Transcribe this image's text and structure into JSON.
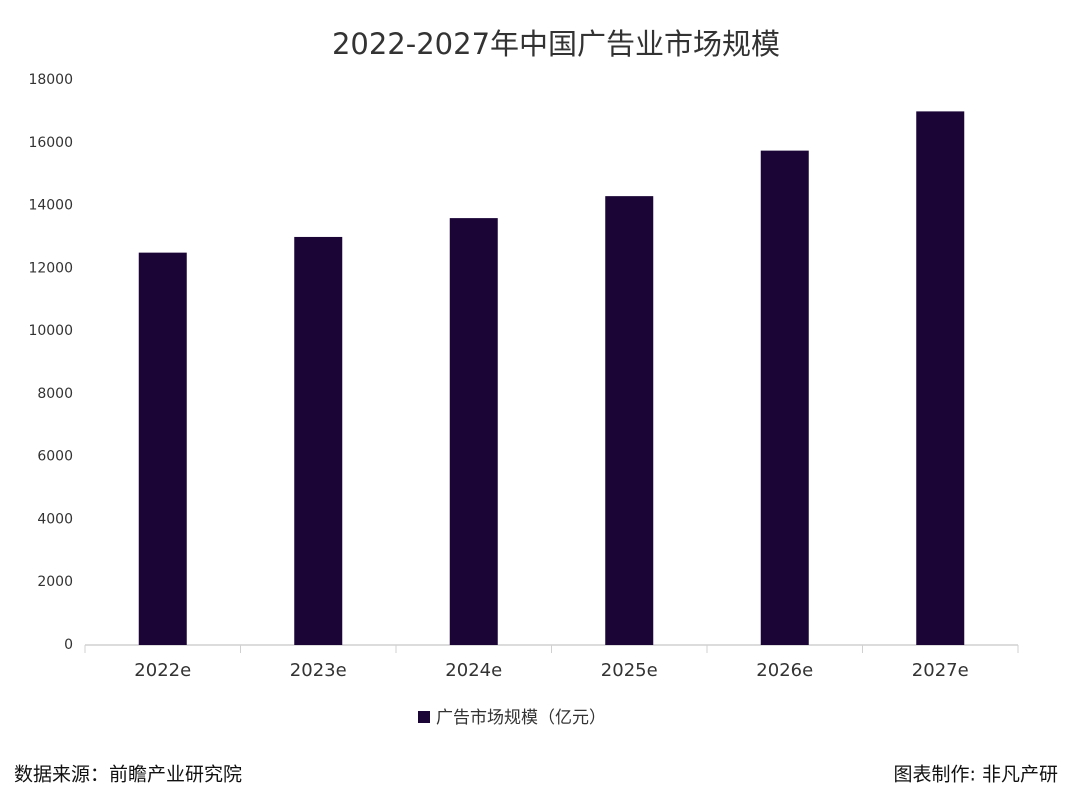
{
  "chart_data": {
    "type": "bar",
    "title": "2022-2027年中国广告业市场规模",
    "categories": [
      "2022e",
      "2023e",
      "2024e",
      "2025e",
      "2026e",
      "2027e"
    ],
    "series": [
      {
        "name": "广告市场规模（亿元）",
        "color": "#1a0536",
        "values": [
          12500,
          13000,
          13600,
          14300,
          15750,
          17000
        ]
      }
    ],
    "ylim": [
      0,
      18000
    ],
    "yticks": [
      0,
      2000,
      4000,
      6000,
      8000,
      10000,
      12000,
      14000,
      16000,
      18000
    ],
    "grid": false,
    "legend": "bottom",
    "source": "数据来源：前瞻产业研究院",
    "credit": "图表制作: 非凡产研"
  }
}
